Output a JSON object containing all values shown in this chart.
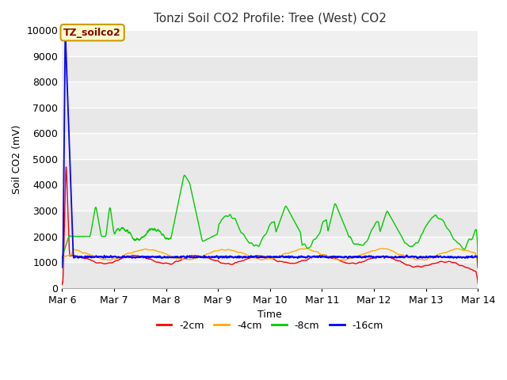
{
  "title": "Tonzi Soil CO2 Profile: Tree (West) CO2",
  "xlabel": "Time",
  "ylabel": "Soil CO2 (mV)",
  "annotation_text": "TZ_soilco2",
  "annotation_color": "#8b0000",
  "annotation_bg": "#ffffcc",
  "annotation_border": "#cc9900",
  "ylim": [
    0,
    10000
  ],
  "yticks": [
    0,
    1000,
    2000,
    3000,
    4000,
    5000,
    6000,
    7000,
    8000,
    9000,
    10000
  ],
  "xlim_days": [
    0,
    8
  ],
  "xtick_labels": [
    "Mar 6",
    "Mar 7",
    "Mar 8",
    "Mar 9",
    "Mar 10",
    "Mar 11",
    "Mar 12",
    "Mar 13",
    "Mar 14"
  ],
  "legend_labels": [
    "-2cm",
    "-4cm",
    "-8cm",
    "-16cm"
  ],
  "legend_colors": [
    "#ff0000",
    "#ffaa00",
    "#00cc00",
    "#0000ff"
  ],
  "line_colors": [
    "#ff0000",
    "#ffaa00",
    "#00cc00",
    "#0000ff"
  ],
  "bg_color": "#e8e8e8",
  "alt_band_color": "#d8d8d8",
  "white_band_color": "#f0f0f0",
  "grid_color": "#ffffff",
  "fig_bg": "#ffffff",
  "title_fontsize": 11,
  "label_fontsize": 9,
  "tick_fontsize": 9,
  "legend_fontsize": 9
}
